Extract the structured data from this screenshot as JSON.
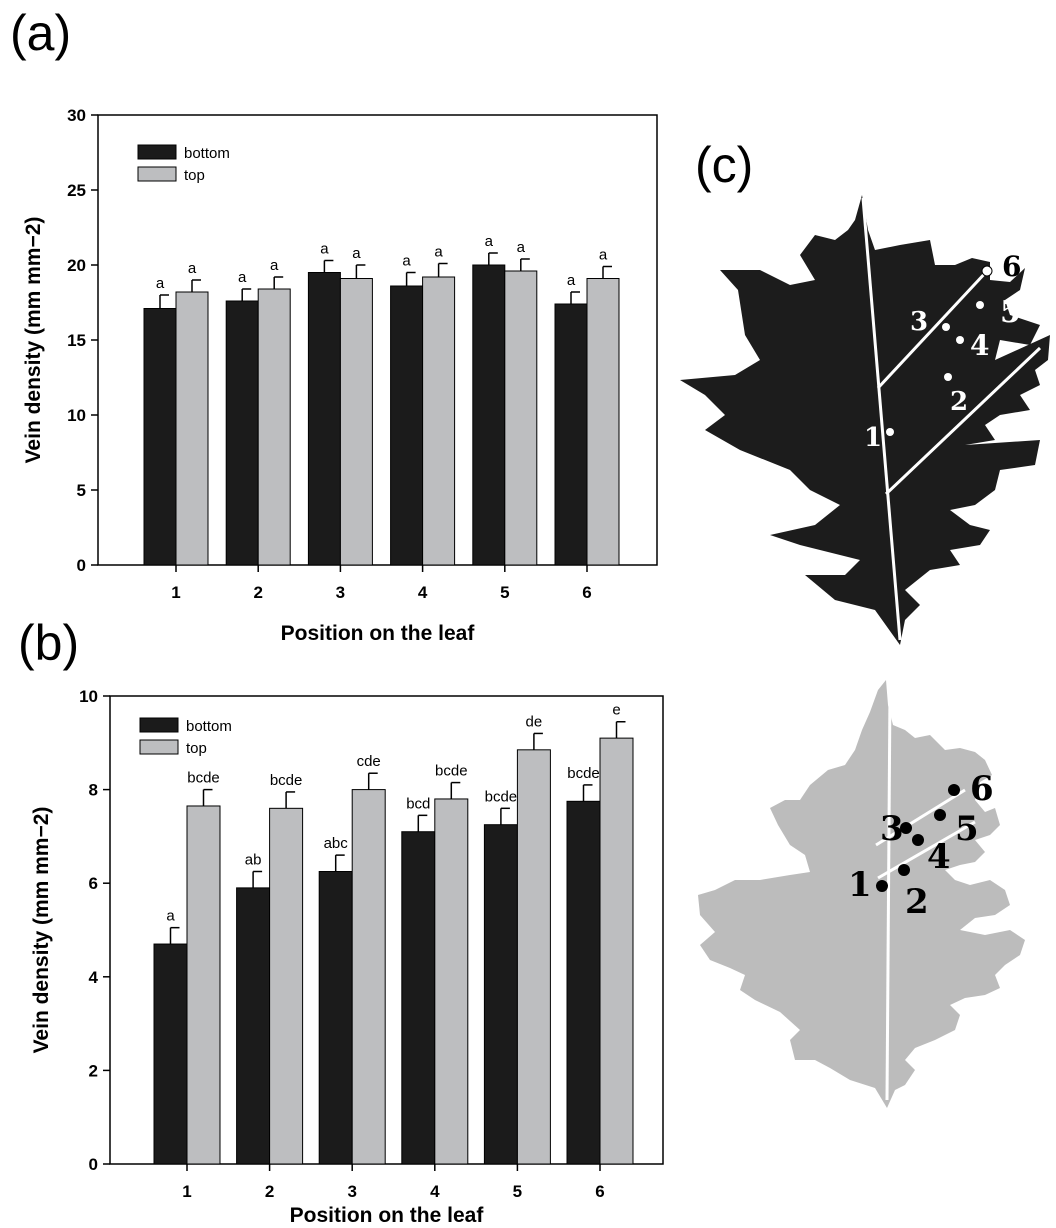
{
  "panels": {
    "a": "(a)",
    "b": "(b)",
    "c": "(c)"
  },
  "colors": {
    "bottom": "#1b1b1b",
    "top": "#bdbec0",
    "leaf_dark": "#1c1c1c",
    "leaf_light": "#bcbcbc"
  },
  "chart_data": [
    {
      "id": "a",
      "type": "bar",
      "categories": [
        "1",
        "2",
        "3",
        "4",
        "5",
        "6"
      ],
      "series": [
        {
          "name": "bottom",
          "values": [
            17.1,
            17.6,
            19.5,
            18.6,
            20.0,
            17.4
          ],
          "errors": [
            0.9,
            0.8,
            0.8,
            0.9,
            0.8,
            0.8
          ],
          "letters": [
            "a",
            "a",
            "a",
            "a",
            "a",
            "a"
          ]
        },
        {
          "name": "top",
          "values": [
            18.2,
            18.4,
            19.1,
            19.2,
            19.6,
            19.1
          ],
          "errors": [
            0.8,
            0.8,
            0.9,
            0.9,
            0.8,
            0.8
          ],
          "letters": [
            "a",
            "a",
            "a",
            "a",
            "a",
            "a"
          ]
        }
      ],
      "xlabel": "Position on the leaf",
      "ylabel": "Vein density (mm mm−2)",
      "ylim": [
        0,
        30
      ],
      "yticks": [
        0,
        5,
        10,
        15,
        20,
        25,
        30
      ],
      "legend": "top-left",
      "grid": false
    },
    {
      "id": "b",
      "type": "bar",
      "categories": [
        "1",
        "2",
        "3",
        "4",
        "5",
        "6"
      ],
      "series": [
        {
          "name": "bottom",
          "values": [
            4.7,
            5.9,
            6.25,
            7.1,
            7.25,
            7.75
          ],
          "errors": [
            0.35,
            0.35,
            0.35,
            0.35,
            0.35,
            0.35
          ],
          "letters": [
            "a",
            "ab",
            "abc",
            "bcd",
            "bcde",
            "bcde"
          ]
        },
        {
          "name": "top",
          "values": [
            7.65,
            7.6,
            8.0,
            7.8,
            8.85,
            9.1
          ],
          "errors": [
            0.35,
            0.35,
            0.35,
            0.35,
            0.35,
            0.35
          ],
          "letters": [
            "bcde",
            "bcde",
            "cde",
            "bcde",
            "de",
            "e"
          ]
        }
      ],
      "xlabel": "Position on the leaf",
      "ylabel": "Vein density (mm mm−2)",
      "ylim": [
        0,
        10
      ],
      "yticks": [
        0,
        2,
        4,
        6,
        8,
        10
      ],
      "legend": "top-left",
      "grid": false
    }
  ],
  "leaf_labels": {
    "dark": [
      "1",
      "2",
      "3",
      "4",
      "5",
      "6"
    ],
    "light": [
      "1",
      "2",
      "3",
      "4",
      "5",
      "6"
    ]
  }
}
